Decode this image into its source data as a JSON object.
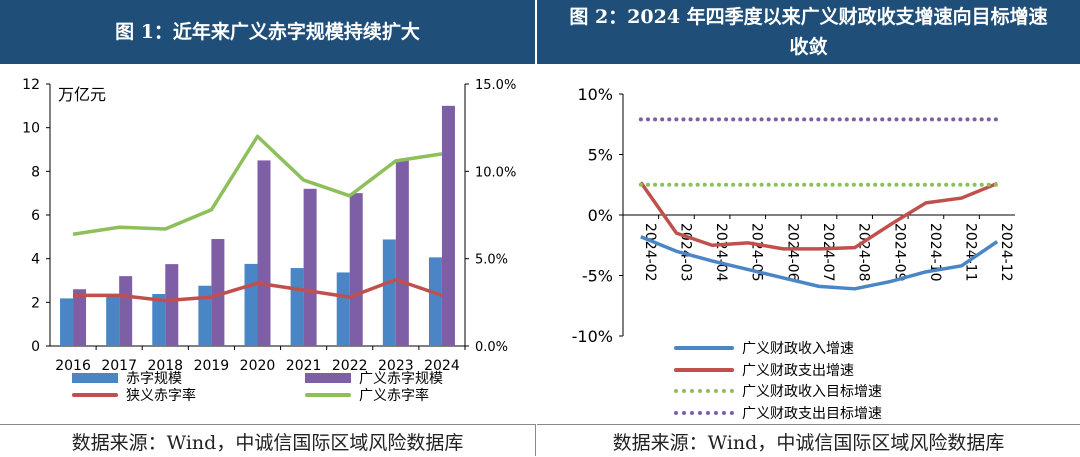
{
  "left": {
    "title": "图 1：近年来广义赤字规模持续扩大",
    "source": "数据来源：Wind，中诚信国际区域风险数据库"
  },
  "right": {
    "title": "图 2：2024 年四季度以来广义财政收支增速向目标增速收敛",
    "source": "数据来源：Wind，中诚信国际区域风险数据库"
  },
  "chart_data": [
    {
      "type": "bar",
      "unit_label": "万亿元",
      "categories": [
        "2016",
        "2017",
        "2018",
        "2019",
        "2020",
        "2021",
        "2022",
        "2023",
        "2024"
      ],
      "ylim": [
        0,
        12
      ],
      "yticks": [
        "0",
        "2",
        "4",
        "6",
        "8",
        "10",
        "12"
      ],
      "y2lim": [
        0,
        15
      ],
      "y2ticks": [
        "0.0%",
        "5.0%",
        "10.0%",
        "15.0%"
      ],
      "series": [
        {
          "name": "赤字规模",
          "type": "bar",
          "axis": "left",
          "color": "#4A86C5",
          "values": [
            2.18,
            2.38,
            2.38,
            2.76,
            3.76,
            3.57,
            3.37,
            4.88,
            4.06
          ]
        },
        {
          "name": "广义赤字规模",
          "type": "bar",
          "axis": "left",
          "color": "#7E5FA6",
          "values": [
            2.6,
            3.2,
            3.75,
            4.9,
            8.5,
            7.2,
            7.0,
            8.5,
            11.0
          ]
        },
        {
          "name": "狭义赤字率",
          "type": "line",
          "axis": "right",
          "color": "#C0504D",
          "values": [
            2.9,
            2.9,
            2.6,
            2.8,
            3.6,
            3.2,
            2.8,
            3.8,
            2.9
          ]
        },
        {
          "name": "广义赤字率",
          "type": "line",
          "axis": "right",
          "color": "#8DBF5A",
          "values": [
            6.4,
            6.8,
            6.7,
            7.8,
            12.0,
            9.5,
            8.6,
            10.6,
            11.0
          ]
        }
      ],
      "grid": false,
      "legend": "bottom"
    },
    {
      "type": "line",
      "categories": [
        "2024-02",
        "2024-03",
        "2024-04",
        "2024-05",
        "2024-06",
        "2024-07",
        "2024-08",
        "2024-09",
        "2024-10",
        "2024-11",
        "2024-12"
      ],
      "ylim": [
        -10,
        10
      ],
      "yticks": [
        "10%",
        "5%",
        "0%",
        "-5%",
        "-10%"
      ],
      "series": [
        {
          "name": "广义财政收入增速",
          "style": "solid",
          "color": "#4A86C5",
          "values": [
            -1.8,
            -3.0,
            -3.8,
            -4.5,
            -5.2,
            -5.9,
            -6.1,
            -5.5,
            -4.7,
            -4.2,
            -2.2
          ]
        },
        {
          "name": "广义财政支出增速",
          "style": "solid",
          "color": "#C0504D",
          "values": [
            2.7,
            -1.5,
            -2.5,
            -2.3,
            -2.8,
            -2.8,
            -2.7,
            -0.8,
            1.0,
            1.4,
            2.6
          ]
        },
        {
          "name": "广义财政收入目标增速",
          "style": "dotted",
          "color": "#8DBF5A",
          "values": [
            2.5,
            2.5,
            2.5,
            2.5,
            2.5,
            2.5,
            2.5,
            2.5,
            2.5,
            2.5,
            2.5
          ]
        },
        {
          "name": "广义财政支出目标增速",
          "style": "dotted",
          "color": "#7E5FA6",
          "values": [
            7.9,
            7.9,
            7.9,
            7.9,
            7.9,
            7.9,
            7.9,
            7.9,
            7.9,
            7.9,
            7.9
          ]
        }
      ],
      "grid": false,
      "legend": "bottom"
    }
  ]
}
